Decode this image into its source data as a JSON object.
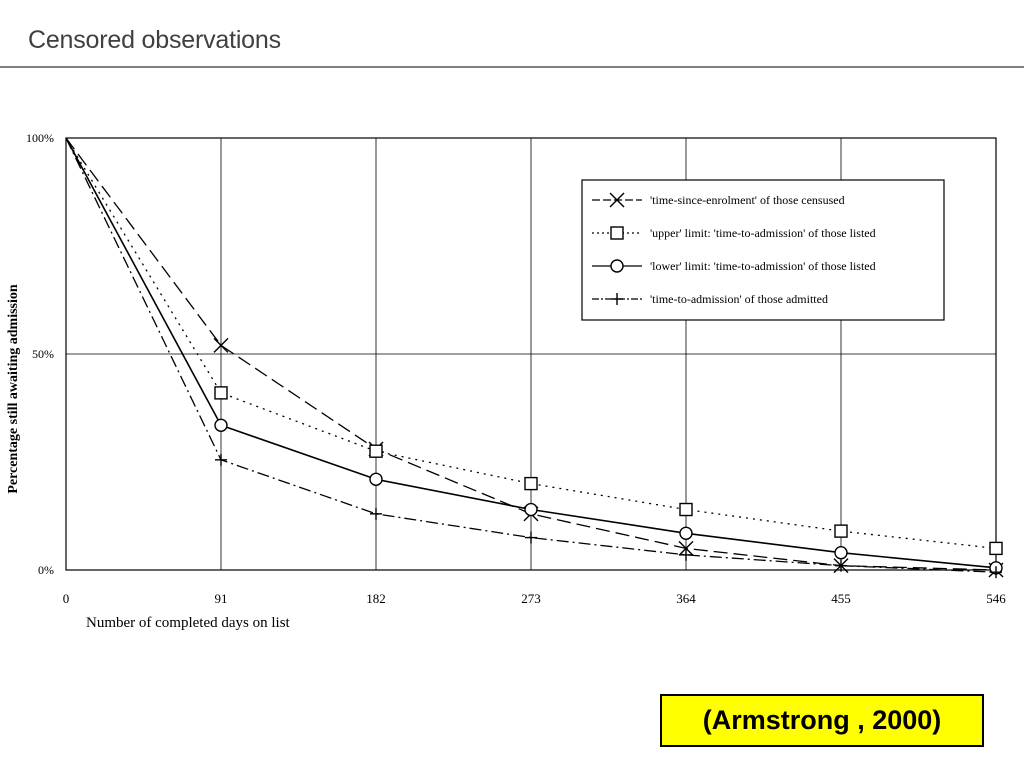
{
  "slide": {
    "title": "Censored observations",
    "citation": "(Armstrong , 2000)"
  },
  "chart_data": {
    "type": "line",
    "title": "",
    "xlabel": "Number of completed days on list",
    "ylabel": "Percentage still awaiting admission",
    "xlim": [
      0,
      546
    ],
    "ylim": [
      0,
      100
    ],
    "x_ticks": [
      0,
      91,
      182,
      273,
      364,
      455,
      546
    ],
    "y_ticks": [
      {
        "value": 0,
        "label": "0%"
      },
      {
        "value": 50,
        "label": "50%"
      },
      {
        "value": 100,
        "label": "100%"
      }
    ],
    "grid": true,
    "legend_position": "top-right",
    "series": [
      {
        "name": "'time-since-enrolment' of those censused",
        "marker": "x",
        "line_style": "dash",
        "x": [
          0,
          91,
          182,
          273,
          364,
          455,
          546
        ],
        "y": [
          100,
          52,
          28,
          13,
          5,
          1,
          0
        ]
      },
      {
        "name": "'upper' limit:  'time-to-admission' of those listed",
        "marker": "square",
        "line_style": "dot",
        "x": [
          0,
          91,
          182,
          273,
          364,
          455,
          546
        ],
        "y": [
          100,
          41,
          27.5,
          20,
          14,
          9,
          5
        ]
      },
      {
        "name": "'lower' limit:  'time-to-admission' of those listed",
        "marker": "circle",
        "line_style": "solid",
        "x": [
          0,
          91,
          182,
          273,
          364,
          455,
          546
        ],
        "y": [
          100,
          33.5,
          21,
          14,
          8.5,
          4,
          0.5
        ]
      },
      {
        "name": "'time-to-admission' of those admitted",
        "marker": "plus",
        "line_style": "dashdot",
        "x": [
          0,
          91,
          182,
          273,
          364,
          455,
          546
        ],
        "y": [
          100,
          25.5,
          13,
          7.5,
          3.5,
          1,
          -0.5
        ]
      }
    ]
  }
}
